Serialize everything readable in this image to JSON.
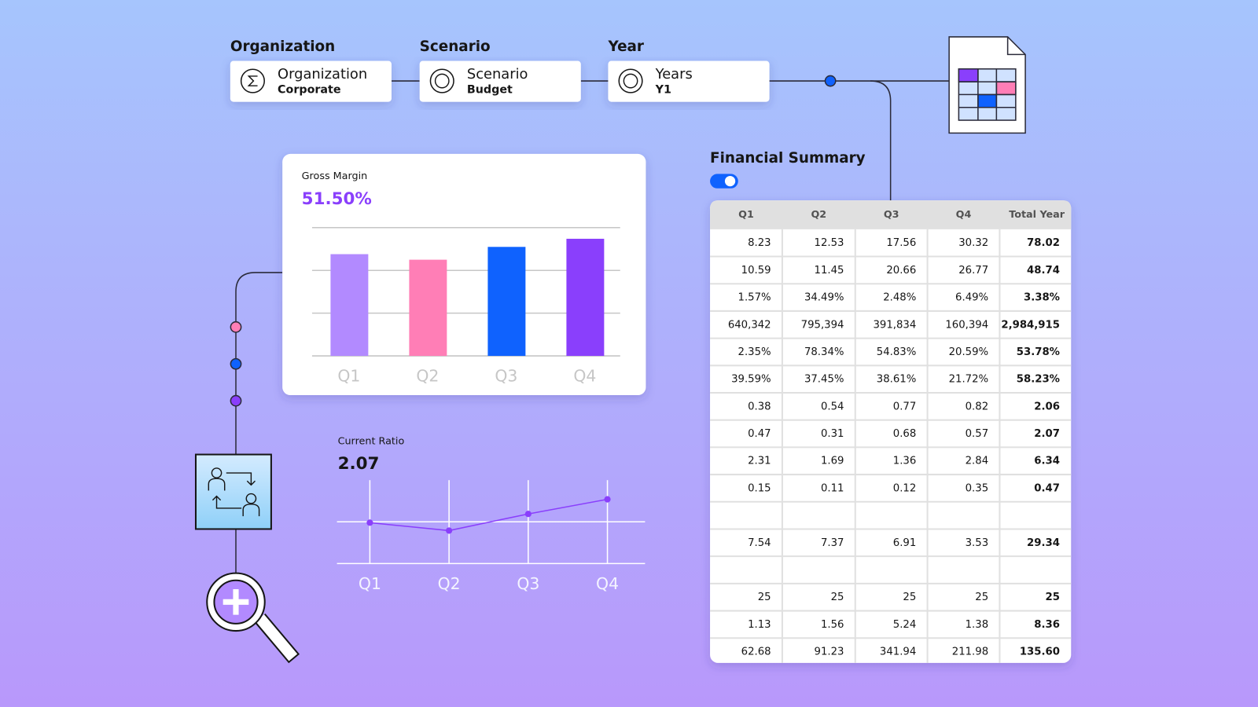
{
  "filters": [
    {
      "label": "Organization",
      "value": "Organization",
      "sub": "Corporate"
    },
    {
      "label": "Scenario",
      "value": "Scenario",
      "sub": "Budget"
    },
    {
      "label": "Year",
      "value": "Years",
      "sub": "Y1"
    }
  ],
  "chart_data": [
    {
      "type": "bar",
      "title": "Gross Margin",
      "subtitle": "51.50%",
      "categories": [
        "Q1",
        "Q2",
        "Q3",
        "Q4"
      ],
      "values": [
        2.38,
        2.25,
        2.55,
        2.74
      ],
      "colors": [
        "#b28aff",
        "#ff7eb6",
        "#0f62fe",
        "#8a3ffc"
      ],
      "ylim": [
        0,
        3
      ],
      "yticks": [
        0,
        1,
        2,
        3
      ],
      "grid": true
    },
    {
      "type": "line",
      "title": "Current Ratio",
      "subtitle": "2.07",
      "categories": [
        "Q1",
        "Q2",
        "Q3",
        "Q4"
      ],
      "values": [
        0.98,
        0.79,
        1.19,
        1.54
      ],
      "color": "#8a3ffc",
      "ylim": [
        0,
        2
      ],
      "yticks": [
        0,
        1
      ],
      "grid": true
    }
  ],
  "table": {
    "title": "Financial Summary",
    "columns": [
      "Q1",
      "Q2",
      "Q3",
      "Q4",
      "Total Year"
    ],
    "rows": [
      [
        "8.23",
        "12.53",
        "17.56",
        "30.32",
        "78.02"
      ],
      [
        "10.59",
        "11.45",
        "20.66",
        "26.77",
        "48.74"
      ],
      [
        "1.57%",
        "34.49%",
        "2.48%",
        "6.49%",
        "3.38%"
      ],
      [
        "640,342",
        "795,394",
        "391,834",
        "160,394",
        "2,984,915"
      ],
      [
        "2.35%",
        "78.34%",
        "54.83%",
        "20.59%",
        "53.78%"
      ],
      [
        "39.59%",
        "37.45%",
        "38.61%",
        "21.72%",
        "58.23%"
      ],
      [
        "0.38",
        "0.54",
        "0.77",
        "0.82",
        "2.06"
      ],
      [
        "0.47",
        "0.31",
        "0.68",
        "0.57",
        "2.07"
      ],
      [
        "2.31",
        "1.69",
        "1.36",
        "2.84",
        "6.34"
      ],
      [
        "0.15",
        "0.11",
        "0.12",
        "0.35",
        "0.47"
      ],
      null,
      [
        "7.54",
        "7.37",
        "6.91",
        "3.53",
        "29.34"
      ],
      null,
      [
        "25",
        "25",
        "25",
        "25",
        "25"
      ],
      [
        "1.13",
        "1.56",
        "5.24",
        "1.38",
        "8.36"
      ],
      [
        "62.68",
        "91.23",
        "341.94",
        "211.98",
        "135.60"
      ]
    ]
  }
}
